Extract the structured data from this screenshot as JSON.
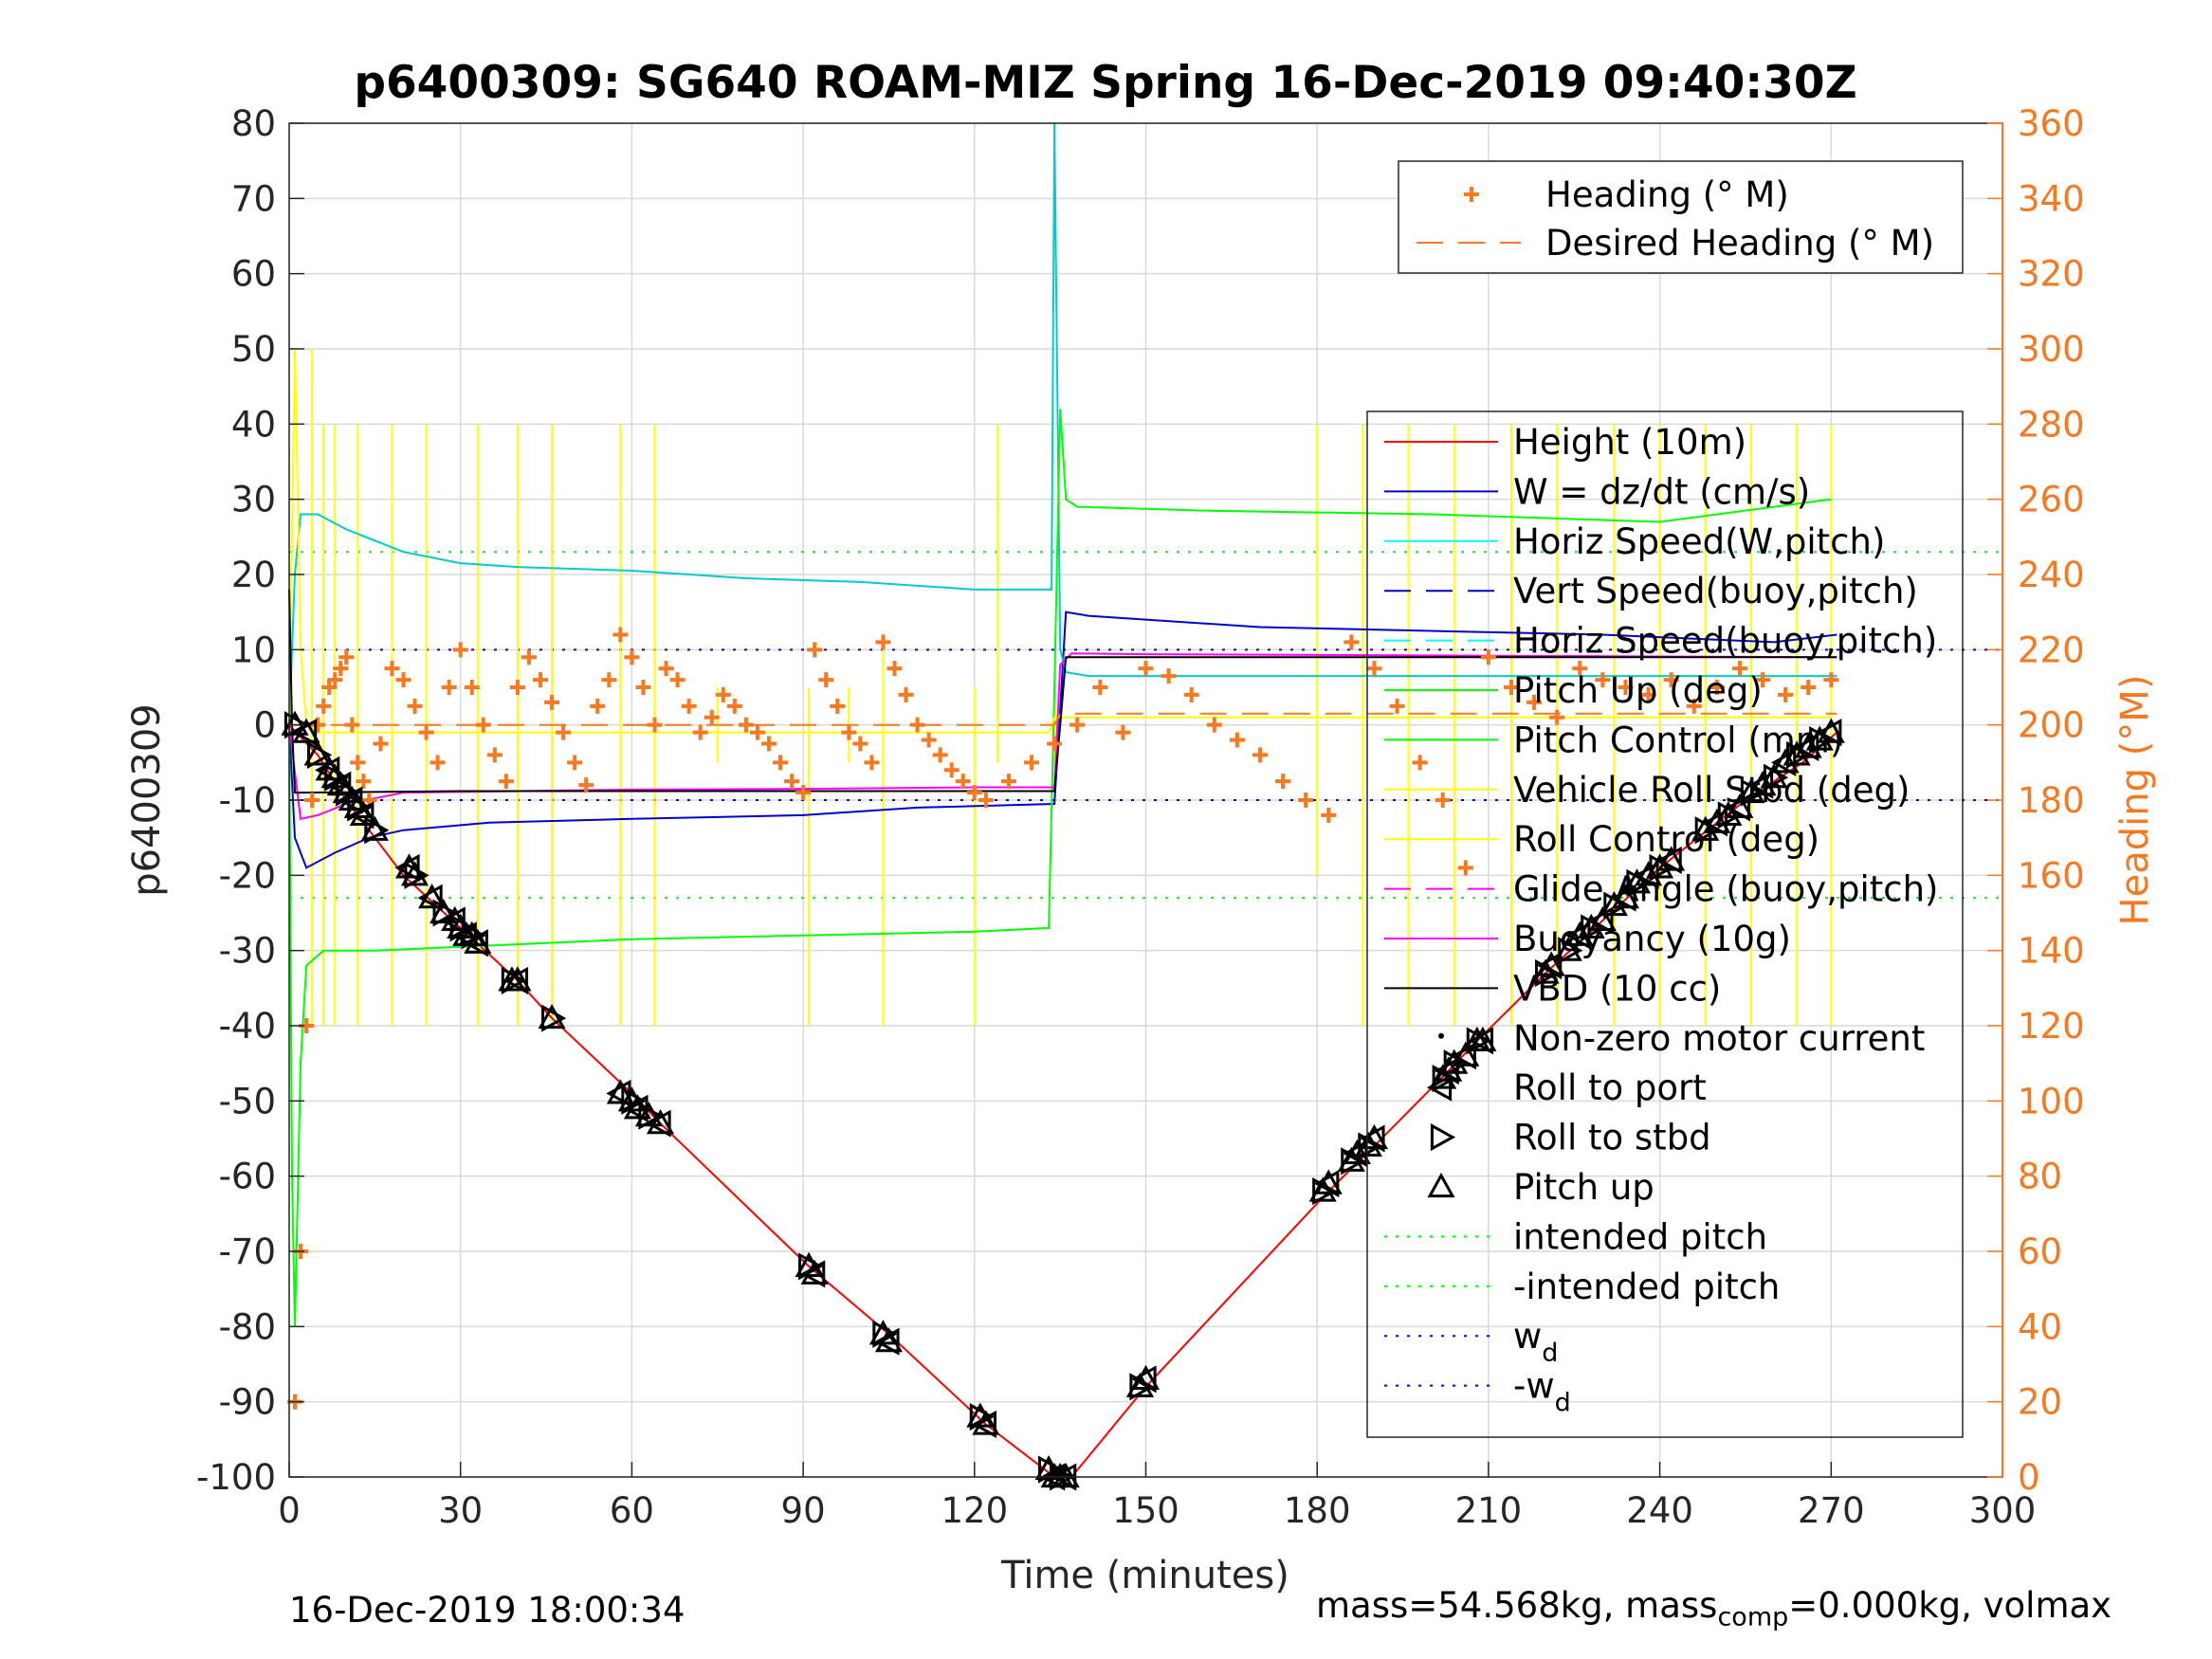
{
  "title": "p6400309: SG640 ROAM-MIZ Spring 16-Dec-2019 09:40:30Z",
  "footer": {
    "timestamp": "16-Dec-2019 18:00:34",
    "mass_prefix": "mass=54.568kg, mass",
    "mass_sub": "comp",
    "mass_suffix": "=0.000kg, volmax"
  },
  "colors": {
    "heading": "#f47921",
    "height": "#ff0000",
    "w": "#0000cc",
    "horiz_speed": "#00ffff",
    "pitch": "#00ff00",
    "roll": "#ffff00",
    "glide": "#ff00ff",
    "buoyancy": "#ff00ff",
    "vbd": "#000000",
    "grid": "#d9d9d9"
  },
  "chart_data": {
    "type": "line",
    "xlabel": "Time (minutes)",
    "ylabel": "p6400309",
    "y2label": "Heading (°M)",
    "xlim": [
      0,
      300
    ],
    "ylim": [
      -100,
      80
    ],
    "y2lim": [
      0,
      360
    ],
    "xticks": [
      0,
      30,
      60,
      90,
      120,
      150,
      180,
      210,
      240,
      270,
      300
    ],
    "yticks": [
      -100,
      -90,
      -80,
      -70,
      -60,
      -50,
      -40,
      -30,
      -20,
      -10,
      0,
      10,
      20,
      30,
      40,
      50,
      60,
      70,
      80
    ],
    "y2ticks": [
      0,
      20,
      40,
      60,
      80,
      100,
      120,
      140,
      160,
      180,
      200,
      220,
      240,
      260,
      280,
      300,
      320,
      340,
      360
    ],
    "grid": true,
    "legend_heading": [
      {
        "label": "Heading (° M)",
        "style": "plus",
        "color": "#f47921"
      },
      {
        "label": "Desired Heading (° M)",
        "style": "dash",
        "color": "#f47921"
      }
    ],
    "legend_main": [
      {
        "label": "Height (10m)",
        "style": "solid",
        "color": "#ff0000"
      },
      {
        "label": "W = dz/dt (cm/s)",
        "style": "solid",
        "color": "#0000cc"
      },
      {
        "label": "Horiz Speed(W,pitch)",
        "style": "solid",
        "color": "#00ffff"
      },
      {
        "label": "Vert Speed(buoy,pitch)",
        "style": "dash",
        "color": "#0000cc"
      },
      {
        "label": "Horiz Speed(buoy,pitch)",
        "style": "dash",
        "color": "#00ffff"
      },
      {
        "label": "Pitch Up (deg)",
        "style": "solid",
        "color": "#00ff00"
      },
      {
        "label": "Pitch Control (mm)",
        "style": "solid",
        "color": "#00ff00"
      },
      {
        "label": "Vehicle Roll Stbd (deg)",
        "style": "solid",
        "color": "#ffff00"
      },
      {
        "label": "Roll Control (deg)",
        "style": "solid",
        "color": "#ffff00"
      },
      {
        "label": "Glide Angle (buoy,pitch)",
        "style": "dash",
        "color": "#ff00ff"
      },
      {
        "label": "Buoyancy (10g)",
        "style": "solid",
        "color": "#ff00ff"
      },
      {
        "label": "VBD (10 cc)",
        "style": "solid",
        "color": "#000000"
      },
      {
        "label": "Non-zero motor current",
        "style": "dot",
        "color": "#000000"
      },
      {
        "label": "Roll to port",
        "style": "tri-left",
        "color": "#000000"
      },
      {
        "label": "Roll to stbd",
        "style": "tri-right",
        "color": "#000000"
      },
      {
        "label": "Pitch up",
        "style": "tri-up",
        "color": "#000000"
      },
      {
        "label": "intended pitch",
        "style": "dotted",
        "color": "#00ff00"
      },
      {
        "label": "-intended pitch",
        "style": "dotted",
        "color": "#00ff00"
      },
      {
        "label": "w",
        "sub": "d",
        "style": "dotted",
        "color": "#0000ff"
      },
      {
        "label": "-w",
        "sub": "d",
        "style": "dotted",
        "color": "#0000ff"
      }
    ],
    "series": [
      {
        "name": "Height (10m)",
        "axis": "left",
        "color": "#ff0000",
        "x": [
          0,
          5,
          10,
          20,
          30,
          40,
          46,
          60,
          65,
          91,
          105,
          122,
          134,
          137,
          150,
          182,
          190,
          203,
          208,
          220,
          240,
          255,
          265,
          271
        ],
        "y": [
          0,
          -4,
          -10,
          -20,
          -27,
          -34,
          -39,
          -49,
          -53,
          -72,
          -81,
          -93,
          -100,
          -100,
          -88,
          -62,
          -56,
          -46,
          -42,
          -33,
          -19,
          -10,
          -5,
          -1
        ]
      },
      {
        "name": "W = dz/dt (cm/s)",
        "axis": "left",
        "color": "#0000cc",
        "x": [
          0,
          1,
          3,
          8,
          14,
          20,
          35,
          60,
          90,
          110,
          134,
          135,
          136,
          140,
          150,
          170,
          200,
          230,
          260,
          271
        ],
        "y": [
          0,
          -15,
          -19,
          -17,
          -15,
          -14,
          -13,
          -12.5,
          -12,
          -11,
          -10.5,
          2,
          15,
          14.5,
          14,
          13,
          12.5,
          12,
          11,
          12
        ]
      },
      {
        "name": "Horiz Speed(W,pitch)",
        "axis": "left",
        "color": "#00cccc",
        "x": [
          0,
          1,
          2,
          5,
          10,
          20,
          30,
          40,
          60,
          80,
          100,
          120,
          132,
          133.5,
          134,
          135,
          136,
          140,
          180,
          220,
          260,
          271
        ],
        "y": [
          0,
          20,
          28,
          28,
          26,
          23,
          21.5,
          21,
          20.5,
          19.5,
          19,
          18,
          18,
          18,
          80,
          10,
          7,
          6.5,
          6.5,
          6.5,
          6.5,
          6.5
        ]
      },
      {
        "name": "Pitch Up (deg)",
        "axis": "left",
        "color": "#00ff00",
        "x": [
          0,
          0.5,
          1,
          2,
          3,
          6,
          15,
          30,
          60,
          90,
          120,
          133,
          134,
          135,
          136,
          138,
          160,
          200,
          240,
          270
        ],
        "y": [
          0,
          -60,
          -80,
          -45,
          -32,
          -30,
          -30,
          -29.5,
          -28.5,
          -28,
          -27.5,
          -27,
          5,
          42,
          30,
          29,
          28.5,
          28,
          27,
          30
        ]
      },
      {
        "name": "Vehicle Roll Stbd (deg)",
        "axis": "left",
        "color": "#ffff00",
        "x": [
          0,
          1,
          2,
          3,
          5,
          30,
          60,
          90,
          120,
          133,
          134,
          140,
          180,
          220,
          260,
          270
        ],
        "y": [
          0,
          50,
          10,
          0,
          -1,
          -1,
          -1,
          -1,
          -1,
          -1,
          1,
          1,
          1,
          1,
          1,
          1
        ]
      },
      {
        "name": "Buoyancy (10g)",
        "axis": "left",
        "color": "#ff00ff",
        "x": [
          0,
          2,
          5,
          10,
          20,
          40,
          60,
          90,
          120,
          134,
          135,
          137,
          150,
          180,
          210,
          240,
          271
        ],
        "y": [
          0,
          -12.5,
          -12,
          -10.5,
          -9,
          -8.8,
          -8.6,
          -8.5,
          -8.3,
          -8.3,
          8,
          9.5,
          9.4,
          9.3,
          9.2,
          9.1,
          9
        ]
      },
      {
        "name": "VBD (10 cc)",
        "axis": "left",
        "color": "#000000",
        "x": [
          0,
          0.5,
          1,
          2,
          30,
          60,
          90,
          120,
          134,
          135,
          136,
          150,
          200,
          250,
          271
        ],
        "y": [
          18,
          0,
          -9,
          -9,
          -8.8,
          -8.8,
          -8.8,
          -8.8,
          -8.8,
          0,
          9,
          9,
          9,
          9,
          9
        ]
      },
      {
        "name": "Heading (° M)",
        "axis": "right",
        "color": "#f47921",
        "marker": "plus",
        "x": [
          1,
          2,
          3,
          4,
          5,
          6,
          7,
          8,
          9,
          10,
          11,
          12,
          13,
          14,
          16,
          18,
          20,
          22,
          24,
          26,
          28,
          30,
          32,
          34,
          36,
          38,
          40,
          42,
          44,
          46,
          48,
          50,
          52,
          54,
          56,
          58,
          60,
          62,
          64,
          66,
          68,
          70,
          72,
          74,
          76,
          78,
          80,
          82,
          84,
          86,
          88,
          90,
          92,
          94,
          96,
          98,
          100,
          102,
          104,
          106,
          108,
          110,
          112,
          114,
          116,
          118,
          120,
          122,
          126,
          130,
          134,
          138,
          142,
          146,
          150,
          154,
          158,
          162,
          166,
          170,
          174,
          178,
          182,
          186,
          190,
          194,
          198,
          202,
          206,
          210,
          214,
          218,
          222,
          226,
          230,
          234,
          238,
          242,
          246,
          250,
          254,
          258,
          262,
          266,
          270
        ],
        "y": [
          20,
          60,
          120,
          180,
          200,
          205,
          210,
          212,
          215,
          218,
          200,
          190,
          185,
          180,
          195,
          215,
          212,
          205,
          198,
          190,
          210,
          220,
          210,
          200,
          192,
          185,
          210,
          218,
          212,
          206,
          198,
          190,
          184,
          205,
          212,
          224,
          218,
          210,
          200,
          215,
          212,
          205,
          198,
          202,
          208,
          205,
          200,
          198,
          195,
          190,
          185,
          182,
          220,
          212,
          205,
          198,
          195,
          190,
          222,
          215,
          208,
          200,
          196,
          192,
          188,
          185,
          182,
          180,
          185,
          190,
          195,
          200,
          210,
          198,
          215,
          213,
          208,
          200,
          196,
          192,
          185,
          180,
          176,
          222,
          215,
          205,
          190,
          180,
          162,
          218,
          210,
          206,
          202,
          215,
          212,
          210,
          208,
          212,
          205,
          210,
          215,
          212,
          208,
          210,
          212
        ]
      },
      {
        "name": "Desired Heading (° M)",
        "axis": "right",
        "color": "#f47921",
        "dash": true,
        "x": [
          0,
          134,
          135,
          271
        ],
        "y": [
          200,
          200,
          203,
          203
        ]
      }
    ],
    "reference_lines": [
      {
        "name": "intended pitch",
        "y": 23,
        "color": "#00ff00",
        "style": "dotted"
      },
      {
        "name": "-intended pitch",
        "y": -23,
        "color": "#00ff00",
        "style": "dotted"
      },
      {
        "name": "w_d",
        "y": 10,
        "color": "#0000ff",
        "style": "dotted"
      },
      {
        "name": "-w_d",
        "y": -10,
        "color": "#0000ff",
        "style": "dotted"
      }
    ],
    "markers": {
      "x": [
        1,
        3,
        5,
        7,
        8,
        9,
        10,
        11,
        12,
        13,
        15,
        21,
        22,
        25,
        27,
        29,
        30,
        31,
        32,
        33,
        39,
        40,
        46,
        58,
        60,
        61,
        63,
        65,
        91,
        92,
        104,
        105,
        121,
        122,
        133,
        134,
        135,
        136,
        149,
        150,
        181,
        182,
        186,
        187,
        189,
        190,
        202,
        203,
        204,
        206,
        208,
        209,
        220,
        221,
        224,
        226,
        228,
        230,
        232,
        234,
        236,
        238,
        240,
        242,
        248,
        250,
        252,
        254,
        256,
        258,
        260,
        262,
        264,
        266,
        268,
        270
      ],
      "y": [
        0,
        -1,
        -4,
        -6,
        -7,
        -8,
        -9,
        -10,
        -11,
        -12,
        -14,
        -19,
        -20,
        -23,
        -25,
        -26,
        -27,
        -28,
        -28,
        -29,
        -34,
        -34,
        -39,
        -49,
        -50,
        -51,
        -52,
        -53,
        -72,
        -73,
        -81,
        -82,
        -92,
        -93,
        -99,
        -100,
        -100,
        -100,
        -88,
        -87,
        -62,
        -61,
        -58,
        -57,
        -56,
        -55,
        -47,
        -46,
        -45,
        -44,
        -42,
        -42,
        -33,
        -32,
        -30,
        -28,
        -27,
        -26,
        -24,
        -23,
        -21,
        -20,
        -19,
        -18,
        -14,
        -13,
        -12,
        -11,
        -9,
        -8,
        -7,
        -5,
        -4,
        -3,
        -2,
        -1
      ]
    },
    "roll_control_spikes": {
      "x": [
        4,
        6,
        8,
        12,
        18,
        24,
        33,
        40,
        46,
        58,
        64,
        75,
        91,
        98,
        104,
        120,
        124,
        134,
        180,
        188,
        196,
        204,
        214,
        222,
        232,
        240,
        248,
        256,
        264,
        270
      ],
      "top": [
        50,
        40,
        40,
        40,
        40,
        40,
        40,
        40,
        40,
        40,
        40,
        5,
        5,
        5,
        10,
        5,
        40,
        5,
        40,
        40,
        40,
        40,
        40,
        40,
        40,
        40,
        40,
        40,
        40,
        40
      ],
      "bottom": [
        -40,
        -40,
        -40,
        -40,
        -40,
        -40,
        -40,
        -40,
        -40,
        -40,
        -40,
        -5,
        -40,
        -5,
        -40,
        -40,
        -5,
        -5,
        -20,
        -40,
        -40,
        -40,
        -40,
        -40,
        -40,
        -40,
        -40,
        -40,
        -40,
        -40
      ]
    }
  }
}
